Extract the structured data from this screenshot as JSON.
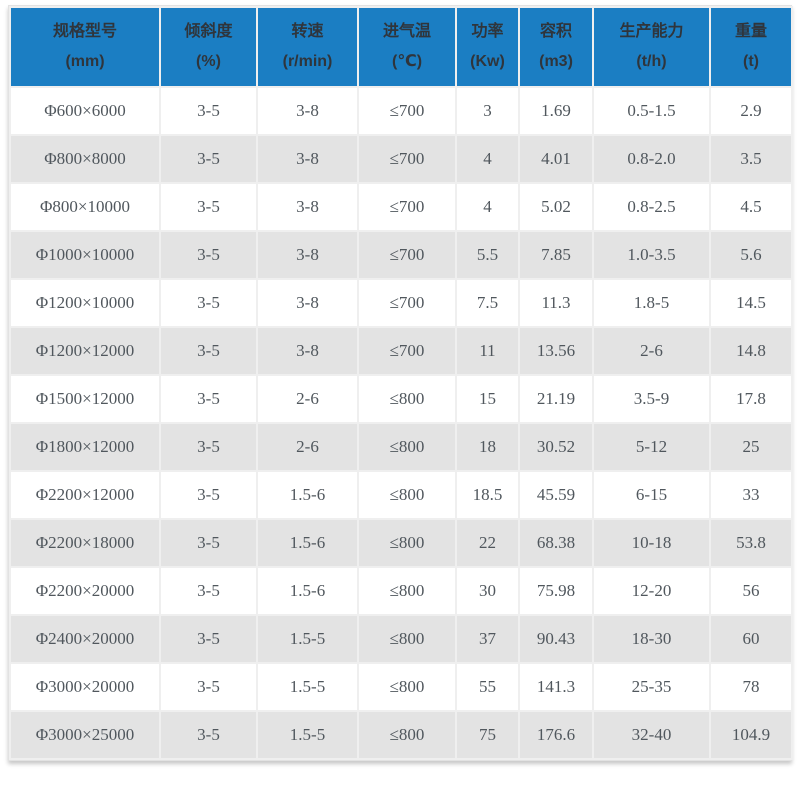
{
  "colors": {
    "header_bg": "#1b7ec3",
    "header_text": "#2f353c",
    "body_text": "#50575d",
    "row_alt_bg": "#e3e3e3",
    "grid_line": "#efefef"
  },
  "chart_data": {
    "type": "table",
    "title": "",
    "columns": [
      {
        "label": "规格型号",
        "unit": "(mm)"
      },
      {
        "label": "倾斜度",
        "unit": "(%)"
      },
      {
        "label": "转速",
        "unit": "(r/min)"
      },
      {
        "label": "进气温",
        "unit": "(℃)"
      },
      {
        "label": "功率",
        "unit": "(Kw)"
      },
      {
        "label": "容积",
        "unit": "(m3)"
      },
      {
        "label": "生产能力",
        "unit": "(t/h)"
      },
      {
        "label": "重量",
        "unit": "(t)"
      }
    ],
    "rows": [
      [
        "Φ600×6000",
        "3-5",
        "3-8",
        "≤700",
        "3",
        "1.69",
        "0.5-1.5",
        "2.9"
      ],
      [
        "Φ800×8000",
        "3-5",
        "3-8",
        "≤700",
        "4",
        "4.01",
        "0.8-2.0",
        "3.5"
      ],
      [
        "Φ800×10000",
        "3-5",
        "3-8",
        "≤700",
        "4",
        "5.02",
        "0.8-2.5",
        "4.5"
      ],
      [
        "Φ1000×10000",
        "3-5",
        "3-8",
        "≤700",
        "5.5",
        "7.85",
        "1.0-3.5",
        "5.6"
      ],
      [
        "Φ1200×10000",
        "3-5",
        "3-8",
        "≤700",
        "7.5",
        "11.3",
        "1.8-5",
        "14.5"
      ],
      [
        "Φ1200×12000",
        "3-5",
        "3-8",
        "≤700",
        "11",
        "13.56",
        "2-6",
        "14.8"
      ],
      [
        "Φ1500×12000",
        "3-5",
        "2-6",
        "≤800",
        "15",
        "21.19",
        "3.5-9",
        "17.8"
      ],
      [
        "Φ1800×12000",
        "3-5",
        "2-6",
        "≤800",
        "18",
        "30.52",
        "5-12",
        "25"
      ],
      [
        "Φ2200×12000",
        "3-5",
        "1.5-6",
        "≤800",
        "18.5",
        "45.59",
        "6-15",
        "33"
      ],
      [
        "Φ2200×18000",
        "3-5",
        "1.5-6",
        "≤800",
        "22",
        "68.38",
        "10-18",
        "53.8"
      ],
      [
        "Φ2200×20000",
        "3-5",
        "1.5-6",
        "≤800",
        "30",
        "75.98",
        "12-20",
        "56"
      ],
      [
        "Φ2400×20000",
        "3-5",
        "1.5-5",
        "≤800",
        "37",
        "90.43",
        "18-30",
        "60"
      ],
      [
        "Φ3000×20000",
        "3-5",
        "1.5-5",
        "≤800",
        "55",
        "141.3",
        "25-35",
        "78"
      ],
      [
        "Φ3000×25000",
        "3-5",
        "1.5-5",
        "≤800",
        "75",
        "176.6",
        "32-40",
        "104.9"
      ]
    ]
  }
}
